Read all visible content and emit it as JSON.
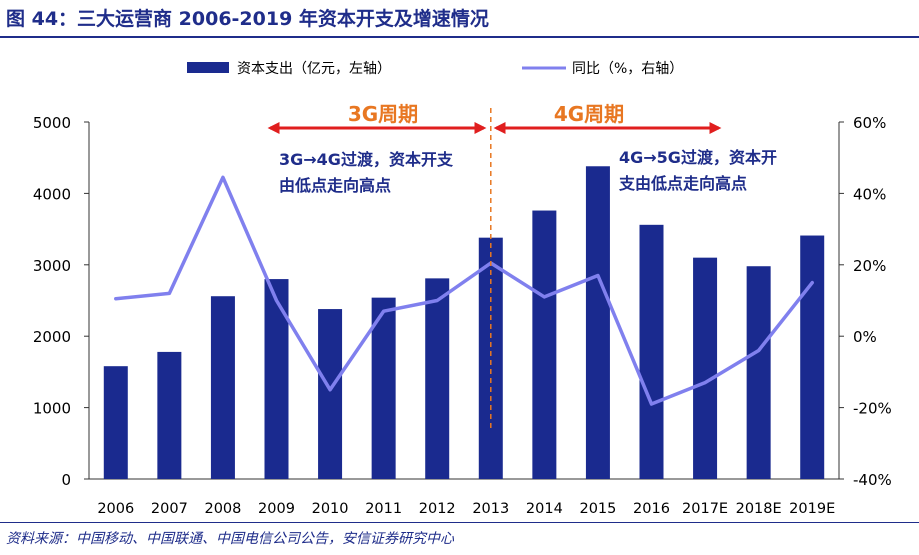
{
  "title": "图 44：三大运营商 2006-2019 年资本开支及增速情况",
  "source": "资料来源：中国移动、中国联通、中国电信公司公告，安信证券研究中心",
  "colors": {
    "bar": "#1a2a8f",
    "line": "#8080ee",
    "arrow": "#e01e1e",
    "period": "#e87722",
    "note": "#1f2d8a",
    "title": "#1f2d8a"
  },
  "chart_data": {
    "type": "bar",
    "categories": [
      "2006",
      "2007",
      "2008",
      "2009",
      "2010",
      "2011",
      "2012",
      "2013",
      "2014",
      "2015",
      "2016",
      "2017E",
      "2018E",
      "2019E"
    ],
    "series": [
      {
        "name": "资本支出（亿元，左轴）",
        "type": "bar",
        "axis": "left",
        "values": [
          1580,
          1780,
          2560,
          2800,
          2380,
          2540,
          2810,
          3380,
          3760,
          4380,
          3560,
          3100,
          2980,
          3410
        ]
      },
      {
        "name": "同比（%，右轴）",
        "type": "line",
        "axis": "right",
        "values": [
          10.5,
          12,
          44.5,
          10,
          -15,
          7,
          10,
          20.5,
          11,
          17,
          -19,
          -13,
          -4,
          15
        ]
      }
    ],
    "y_left": {
      "min": 0,
      "max": 5000,
      "ticks": [
        "0",
        "1000",
        "2000",
        "3000",
        "4000",
        "5000"
      ]
    },
    "y_right": {
      "min": -40,
      "max": 60,
      "ticks": [
        "-40%",
        "-20%",
        "0%",
        "20%",
        "40%",
        "60%"
      ]
    },
    "legend_position": "top",
    "annotations": {
      "period_3g": "3G周期",
      "period_4g": "4G周期",
      "note_3g_line1": "3G→4G过渡，资本开支",
      "note_3g_line2": "由低点走向高点",
      "note_4g_line1": "4G→5G过渡，资本开",
      "note_4g_line2": "支由低点走向高点",
      "divider_at": "2013"
    }
  }
}
